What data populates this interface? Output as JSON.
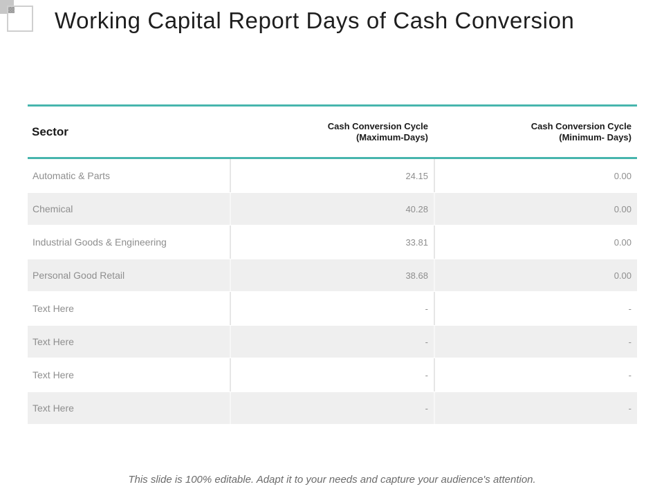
{
  "title": "Working Capital Report Days of Cash Conversion",
  "table": {
    "columns": [
      {
        "label": "Sector"
      },
      {
        "label": "Cash Conversion Cycle\n(Maximum-Days)"
      },
      {
        "label": "Cash Conversion Cycle\n(Minimum- Days)"
      }
    ],
    "rows": [
      {
        "sector": "Automatic & Parts",
        "max": "24.15",
        "min": "0.00"
      },
      {
        "sector": "Chemical",
        "max": "40.28",
        "min": "0.00"
      },
      {
        "sector": "Industrial Goods & Engineering",
        "max": "33.81",
        "min": "0.00"
      },
      {
        "sector": "Personal Good Retail",
        "max": "38.68",
        "min": "0.00"
      },
      {
        "sector": "Text Here",
        "max": "-",
        "min": "-"
      },
      {
        "sector": "Text Here",
        "max": "-",
        "min": "-"
      },
      {
        "sector": "Text Here",
        "max": "-",
        "min": "-"
      },
      {
        "sector": "Text Here",
        "max": "-",
        "min": "-"
      }
    ]
  },
  "footer": {
    "note": "This slide is 100% editable.  Adapt it to your needs and capture your audience's attention."
  },
  "colors": {
    "accent_teal": "#46b5ad",
    "row_alt_background": "#efefef",
    "cell_text": "#8e8e8e",
    "header_text": "#1a1a1a"
  }
}
